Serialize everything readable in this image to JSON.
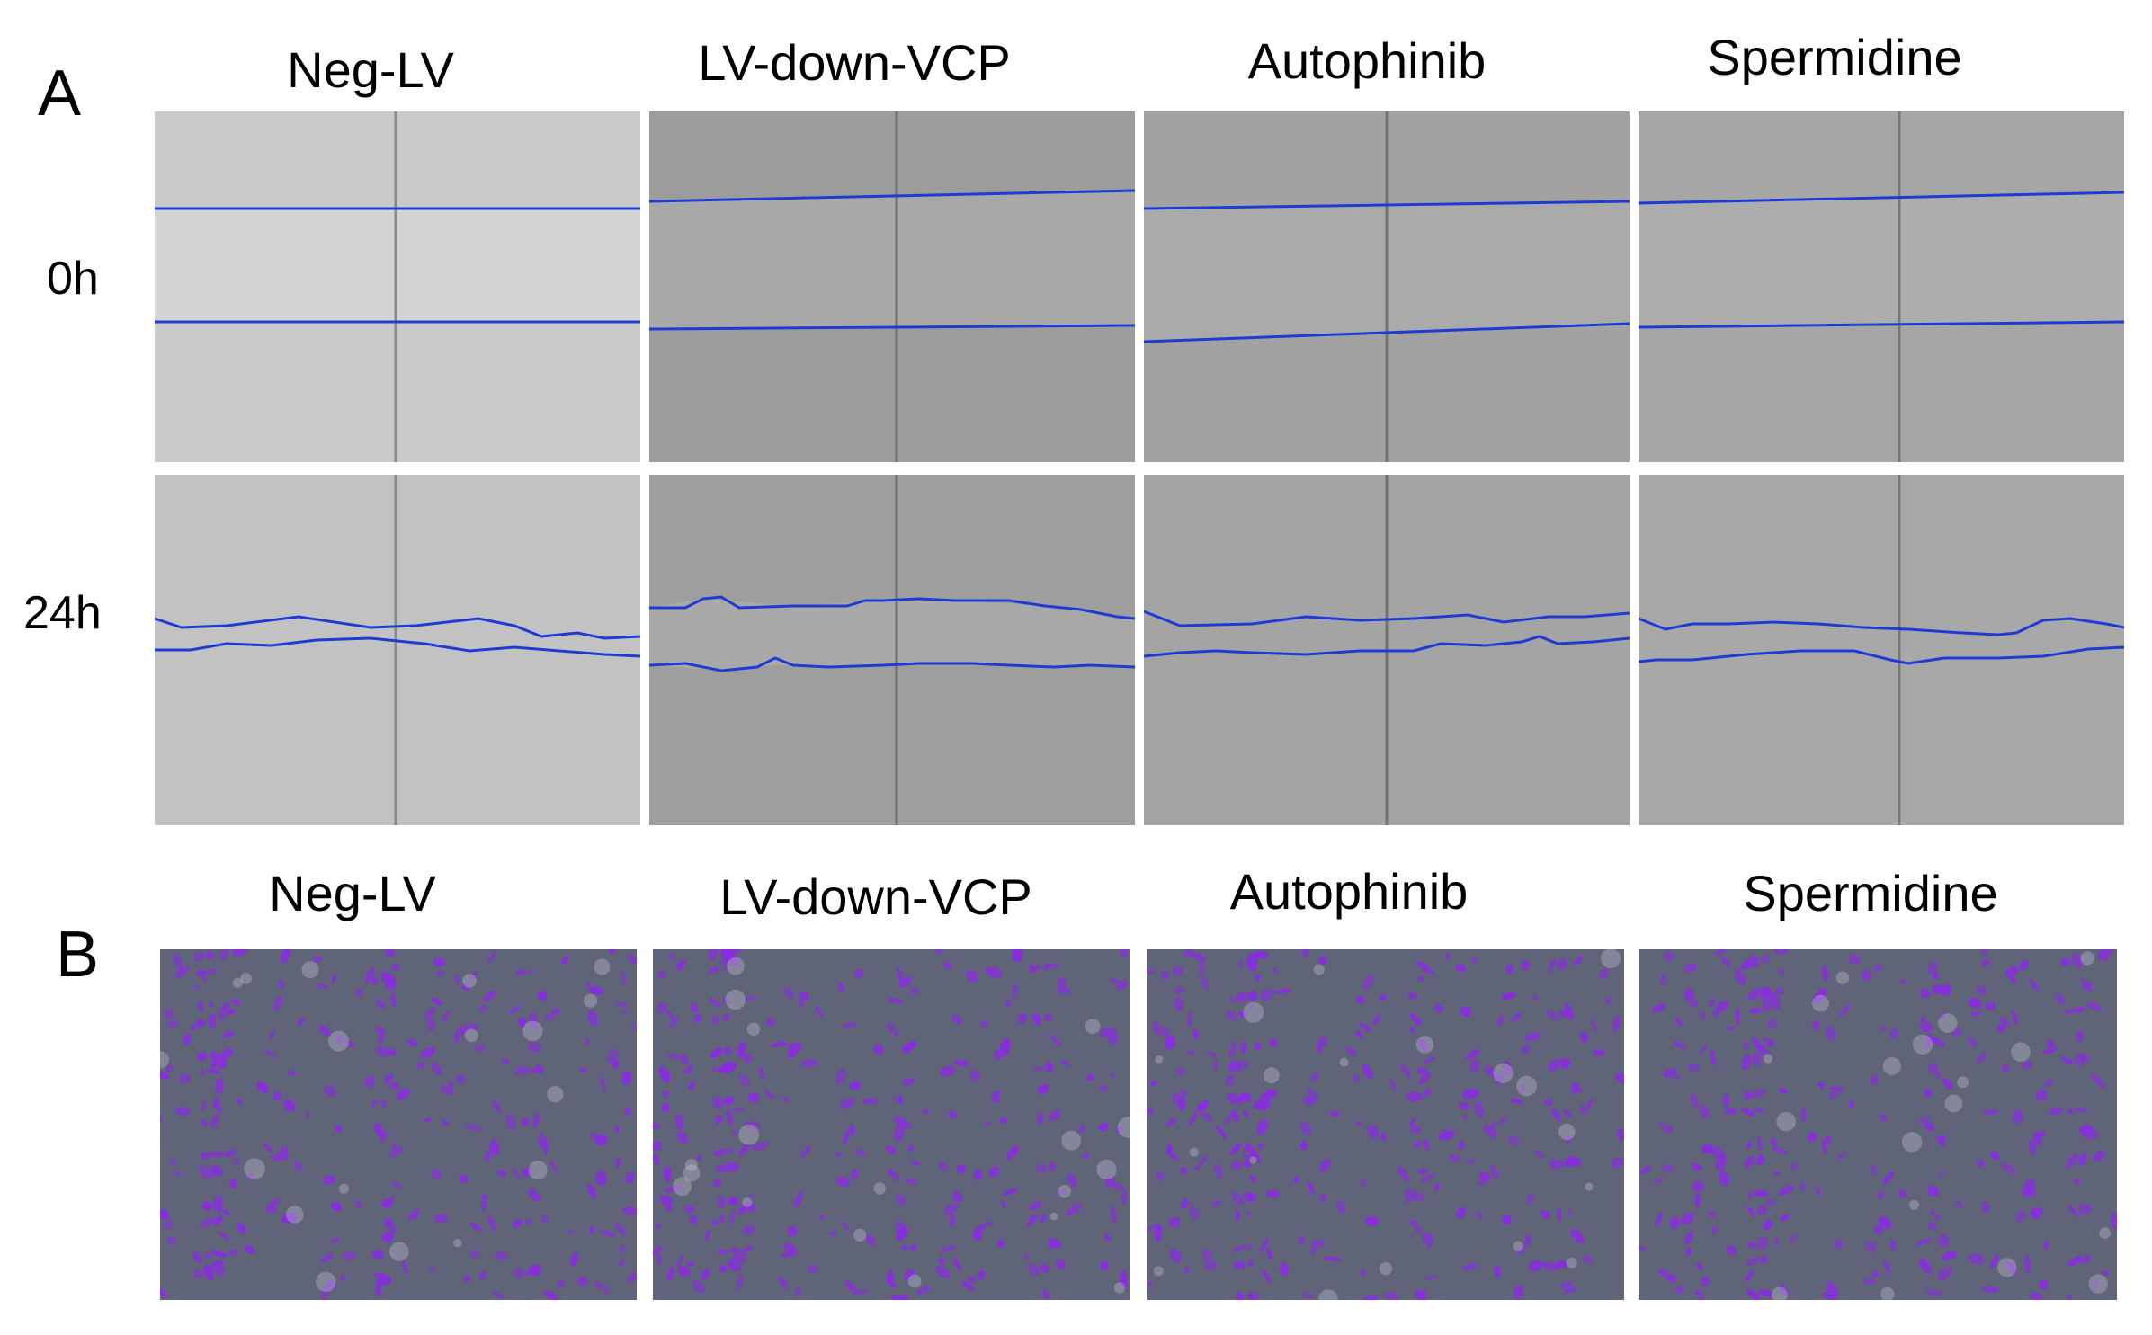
{
  "panel_a": {
    "letter": "A",
    "column_titles": [
      "Neg-LV",
      "LV-down-VCP",
      "Autophinib",
      "Spermidine"
    ],
    "row_labels": [
      "0h",
      "24h"
    ]
  },
  "panel_b": {
    "letter": "B",
    "column_titles": [
      "Neg-LV",
      "LV-down-VCP",
      "Autophinib",
      "Spermidine"
    ]
  },
  "colors": {
    "scratch_line": "#1f3bd6",
    "stain_violet": "#8a2be2",
    "phase_gray": "#a8a8a8"
  }
}
